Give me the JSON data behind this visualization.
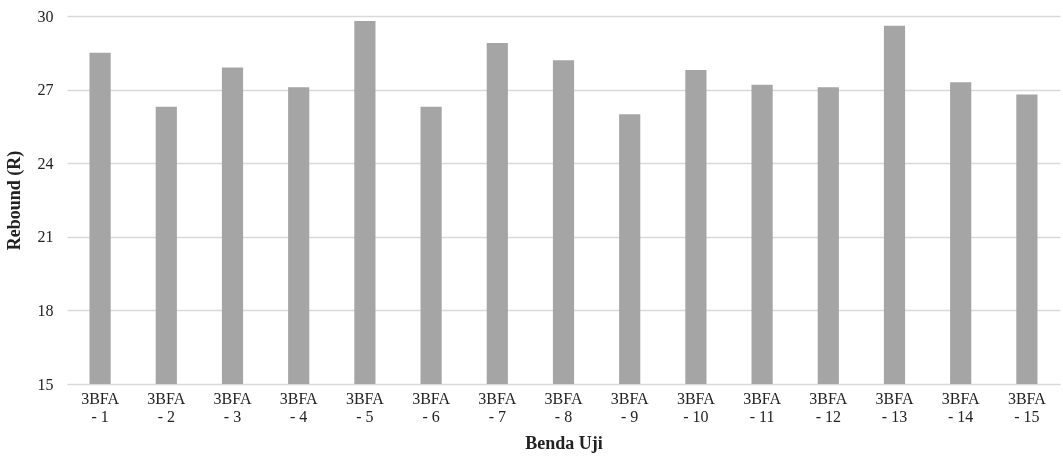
{
  "chart_data": {
    "type": "bar",
    "xlabel": "Benda Uji",
    "ylabel": "Rebound (R)",
    "categories": [
      "3BFA - 1",
      "3BFA - 2",
      "3BFA - 3",
      "3BFA - 4",
      "3BFA - 5",
      "3BFA - 6",
      "3BFA - 7",
      "3BFA - 8",
      "3BFA - 9",
      "3BFA - 10",
      "3BFA - 11",
      "3BFA - 12",
      "3BFA - 13",
      "3BFA - 14",
      "3BFA - 15"
    ],
    "values": [
      28.5,
      26.3,
      27.9,
      27.1,
      29.8,
      26.3,
      28.9,
      28.2,
      26.0,
      27.8,
      27.2,
      27.1,
      29.6,
      27.3,
      26.8
    ],
    "color": "#a5a5a5",
    "ylim": [
      15,
      30
    ],
    "yticks": [
      15,
      18,
      21,
      24,
      27,
      30
    ],
    "grid": "y"
  }
}
